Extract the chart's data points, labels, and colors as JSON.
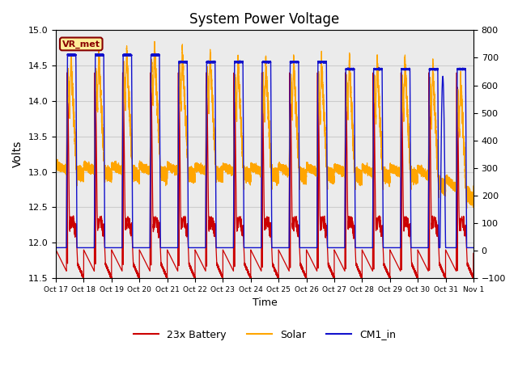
{
  "title": "System Power Voltage",
  "xlabel": "Time",
  "ylabel_left": "Volts",
  "ylim_left": [
    11.5,
    15.0
  ],
  "ylim_right": [
    -100,
    800
  ],
  "yticks_left": [
    11.5,
    12.0,
    12.5,
    13.0,
    13.5,
    14.0,
    14.5,
    15.0
  ],
  "yticks_right": [
    -100,
    0,
    100,
    200,
    300,
    400,
    500,
    600,
    700,
    800
  ],
  "xtick_labels": [
    "Oct 17",
    "Oct 18",
    "Oct 19",
    "Oct 20",
    "Oct 21",
    "Oct 22",
    "Oct 23",
    "Oct 24",
    "Oct 25",
    "Oct 26",
    "Oct 27",
    "Oct 28",
    "Oct 29",
    "Oct 30",
    "Oct 31",
    "Nov 1"
  ],
  "color_battery": "#CC0000",
  "color_solar": "#FFA500",
  "color_cm1": "#1111CC",
  "legend_labels": [
    "23x Battery",
    "Solar",
    "CM1_in"
  ],
  "annotation_text": "VR_met",
  "annotation_color": "#880000",
  "annotation_bg": "#FFEE99",
  "grid_color": "#CCCCCC",
  "plot_bg": "#EBEBEB",
  "n_cycles": 15
}
